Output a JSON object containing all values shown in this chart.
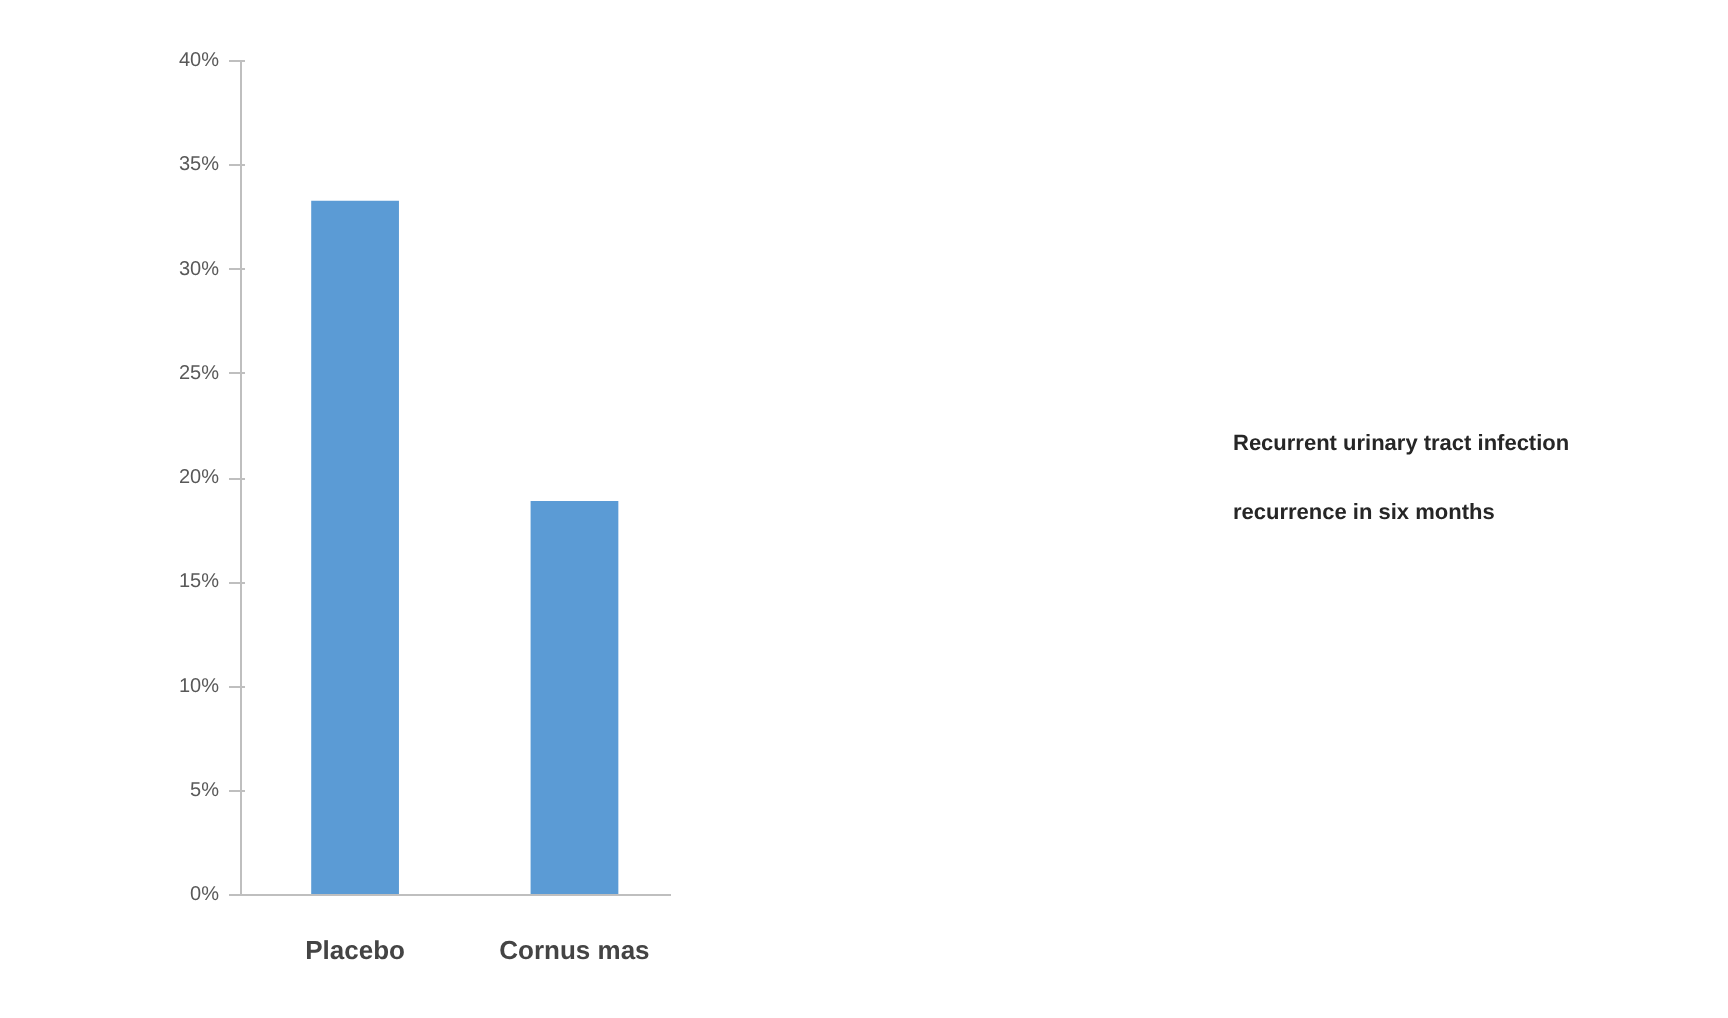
{
  "chart_data": {
    "type": "bar",
    "categories": [
      "Placebo",
      "Cornus mas"
    ],
    "values": [
      33.3,
      18.9
    ],
    "color": "#5b9bd5",
    "ylim": [
      0,
      40
    ],
    "yticks": [
      {
        "value": 0,
        "label": "0%"
      },
      {
        "value": 5,
        "label": "5%"
      },
      {
        "value": 10,
        "label": "10%"
      },
      {
        "value": 15,
        "label": "15%"
      },
      {
        "value": 20,
        "label": "20%"
      },
      {
        "value": 25,
        "label": "25%"
      },
      {
        "value": 30,
        "label": "30%"
      },
      {
        "value": 35,
        "label": "35%"
      },
      {
        "value": 40,
        "label": "40%"
      }
    ],
    "grid": false,
    "annotations": [
      "Recurrent urinary tract infection",
      "recurrence in six months"
    ]
  }
}
